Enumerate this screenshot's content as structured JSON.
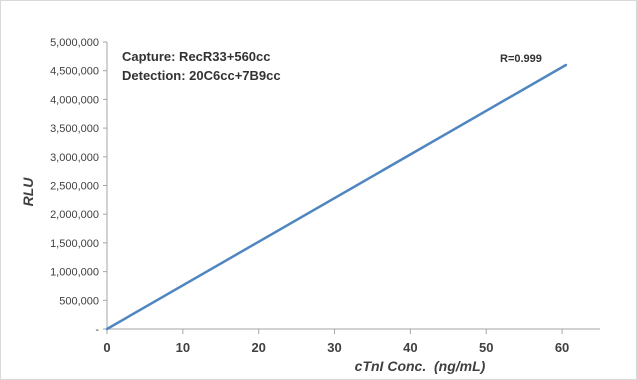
{
  "chart_data": {
    "type": "line",
    "title": "",
    "xlabel": "cTnI Conc.  (ng/mL)",
    "ylabel": "RLU",
    "xlim": [
      0,
      65
    ],
    "ylim": [
      0,
      5000000
    ],
    "x_ticks": [
      0,
      10,
      20,
      30,
      40,
      50,
      60
    ],
    "x_tick_labels": [
      "0",
      "10",
      "20",
      "30",
      "40",
      "50",
      "60"
    ],
    "y_ticks": [
      0,
      500000,
      1000000,
      1500000,
      2000000,
      2500000,
      3000000,
      3500000,
      4000000,
      4500000,
      5000000
    ],
    "y_tick_labels": [
      "-",
      "500,000",
      "1,000,000",
      "1,500,000",
      "2,000,000",
      "2,500,000",
      "3,000,000",
      "3,500,000",
      "4,000,000",
      "4,500,000",
      "5,000,000"
    ],
    "grid": false,
    "legend": "none",
    "series": [
      {
        "color": "#4f86c0",
        "x": [
          0,
          60.5
        ],
        "y": [
          0,
          4600000
        ]
      }
    ],
    "annotations": {
      "capture": "Capture: RecR33+560cc",
      "detection": "Detection: 20C6cc+7B9cc",
      "r_value": "R=0.999"
    }
  },
  "colors": {
    "axis": "#a6a6a6",
    "frame": "#d9d9d9",
    "line": "#4f86c0"
  }
}
